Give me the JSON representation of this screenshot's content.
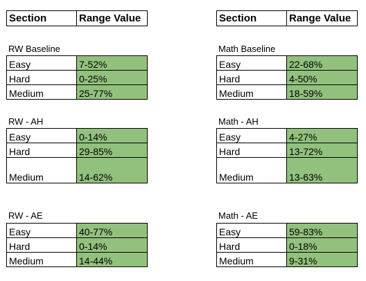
{
  "header": {
    "section": "Section",
    "range_value": "Range Value"
  },
  "left": {
    "blocks": [
      {
        "title": "RW Baseline",
        "rows": [
          {
            "label": "Easy",
            "value": "7-52%"
          },
          {
            "label": "Hard",
            "value": "0-25%"
          },
          {
            "label": "Medium",
            "value": "25-77%"
          }
        ]
      },
      {
        "title": "RW - AH",
        "rows": [
          {
            "label": "Easy",
            "value": "0-14%"
          },
          {
            "label": "Hard",
            "value": "29-85%"
          },
          {
            "label": "Medium",
            "value": "14-62%"
          }
        ]
      },
      {
        "title": "RW - AE",
        "rows": [
          {
            "label": "Easy",
            "value": "40-77%"
          },
          {
            "label": "Hard",
            "value": "0-14%"
          },
          {
            "label": "Medium",
            "value": "14-44%"
          }
        ]
      }
    ]
  },
  "right": {
    "blocks": [
      {
        "title": "Math Baseline",
        "rows": [
          {
            "label": "Easy",
            "value": "22-68%"
          },
          {
            "label": "Hard",
            "value": "4-50%"
          },
          {
            "label": "Medium",
            "value": "18-59%"
          }
        ]
      },
      {
        "title": "Math - AH",
        "rows": [
          {
            "label": "Easy",
            "value": "4-27%"
          },
          {
            "label": "Hard",
            "value": "13-72%"
          },
          {
            "label": "Medium",
            "value": "13-63%"
          }
        ]
      },
      {
        "title": "Math - AE",
        "rows": [
          {
            "label": "Easy",
            "value": "59-83%"
          },
          {
            "label": "Hard",
            "value": "0-18%"
          },
          {
            "label": "Medium",
            "value": "9-31%"
          }
        ]
      }
    ]
  },
  "colors": {
    "value_fill": "#92c17d",
    "border": "#000000"
  }
}
